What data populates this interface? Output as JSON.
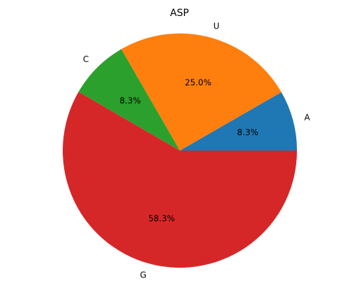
{
  "chart_data": {
    "type": "pie",
    "title": "ASP",
    "categories": [
      "A",
      "U",
      "C",
      "G"
    ],
    "values": [
      8.3,
      25.0,
      8.3,
      58.3
    ],
    "percent_labels": [
      "8.3%",
      "25.0%",
      "8.3%",
      "58.3%"
    ],
    "colors": [
      "#1f77b4",
      "#ff7f0e",
      "#2ca02c",
      "#d62728"
    ],
    "start_angle_deg": 0,
    "direction": "counterclockwise"
  }
}
